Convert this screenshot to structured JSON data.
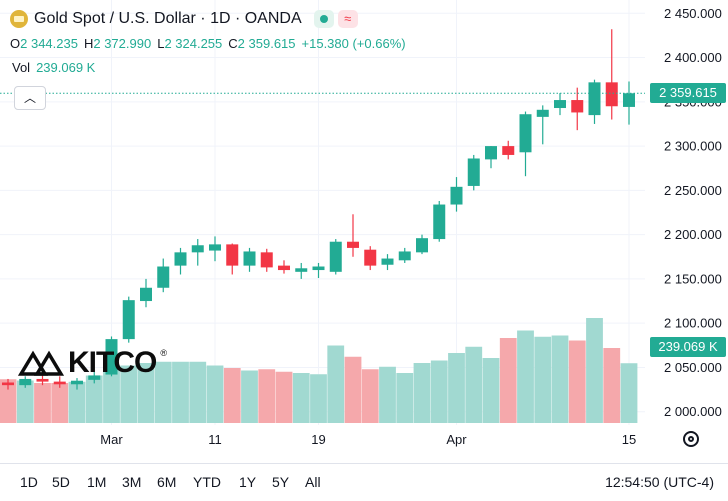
{
  "header": {
    "title": "Gold Spot / U.S. Dollar · 1D · OANDA",
    "ohlc": [
      {
        "k": "O",
        "v": "2 344.235"
      },
      {
        "k": "H",
        "v": "2 372.990"
      },
      {
        "k": "L",
        "v": "2 324.255"
      },
      {
        "k": "C",
        "v": "2 359.615"
      }
    ],
    "change": "+15.380 (+0.66%)",
    "vol_label": "Vol",
    "vol_value": "239.069 K",
    "wave_icon": "≈"
  },
  "logo": {
    "text": "KITCO",
    "mark": "®"
  },
  "price_tags": {
    "price": "2 359.615",
    "volume": "239.069 K"
  },
  "bottom": {
    "ranges": [
      "1D",
      "5D",
      "1M",
      "3M",
      "6M",
      "YTD",
      "1Y",
      "5Y",
      "All"
    ],
    "time": "12:54:50 (UTC-4)"
  },
  "colors": {
    "up": "#22ab94",
    "down": "#f23645",
    "vol_up": "#a1d9d1",
    "vol_down": "#f5a8ab"
  },
  "chart_data": {
    "type": "candlestick",
    "title": "Gold Spot / U.S. Dollar · 1D · OANDA",
    "ylim": [
      1985,
      2465
    ],
    "yticks": [
      2000,
      2050,
      2100,
      2150,
      2200,
      2250,
      2300,
      2350,
      2400,
      2450
    ],
    "ytick_labels": [
      "2 000.000",
      "2 050.000",
      "2 100.000",
      "2 150.000",
      "2 200.000",
      "2 250.000",
      "2 300.000",
      "2 350.000",
      "2 400.000",
      "2 450.000"
    ],
    "xtick_labels": [
      {
        "label": "Mar",
        "index": 6
      },
      {
        "label": "11",
        "index": 12
      },
      {
        "label": "19",
        "index": 18
      },
      {
        "label": "Apr",
        "index": 26
      },
      {
        "label": "15",
        "index": 36
      }
    ],
    "last_price": 2359.615,
    "candles": [
      {
        "o": 2033,
        "h": 2037,
        "l": 2025,
        "c": 2030
      },
      {
        "o": 2030,
        "h": 2040,
        "l": 2027,
        "c": 2037
      },
      {
        "o": 2037,
        "h": 2042,
        "l": 2030,
        "c": 2034
      },
      {
        "o": 2034,
        "h": 2040,
        "l": 2027,
        "c": 2031
      },
      {
        "o": 2031,
        "h": 2038,
        "l": 2025,
        "c": 2035
      },
      {
        "o": 2036,
        "h": 2045,
        "l": 2032,
        "c": 2041
      },
      {
        "o": 2042,
        "h": 2085,
        "l": 2040,
        "c": 2082
      },
      {
        "o": 2082,
        "h": 2130,
        "l": 2078,
        "c": 2126
      },
      {
        "o": 2125,
        "h": 2150,
        "l": 2118,
        "c": 2140
      },
      {
        "o": 2140,
        "h": 2173,
        "l": 2135,
        "c": 2164
      },
      {
        "o": 2165,
        "h": 2185,
        "l": 2155,
        "c": 2180
      },
      {
        "o": 2180,
        "h": 2195,
        "l": 2165,
        "c": 2188
      },
      {
        "o": 2182,
        "h": 2198,
        "l": 2170,
        "c": 2189
      },
      {
        "o": 2189,
        "h": 2190,
        "l": 2155,
        "c": 2165
      },
      {
        "o": 2165,
        "h": 2185,
        "l": 2158,
        "c": 2181
      },
      {
        "o": 2180,
        "h": 2184,
        "l": 2158,
        "c": 2163
      },
      {
        "o": 2165,
        "h": 2171,
        "l": 2156,
        "c": 2160
      },
      {
        "o": 2158,
        "h": 2168,
        "l": 2150,
        "c": 2162
      },
      {
        "o": 2160,
        "h": 2168,
        "l": 2151,
        "c": 2164
      },
      {
        "o": 2158,
        "h": 2195,
        "l": 2155,
        "c": 2192
      },
      {
        "o": 2192,
        "h": 2223,
        "l": 2175,
        "c": 2185
      },
      {
        "o": 2183,
        "h": 2187,
        "l": 2160,
        "c": 2165
      },
      {
        "o": 2166,
        "h": 2178,
        "l": 2160,
        "c": 2173
      },
      {
        "o": 2171,
        "h": 2185,
        "l": 2168,
        "c": 2181
      },
      {
        "o": 2180,
        "h": 2200,
        "l": 2178,
        "c": 2196
      },
      {
        "o": 2195,
        "h": 2238,
        "l": 2192,
        "c": 2234
      },
      {
        "o": 2234,
        "h": 2265,
        "l": 2226,
        "c": 2254
      },
      {
        "o": 2255,
        "h": 2290,
        "l": 2250,
        "c": 2286
      },
      {
        "o": 2285,
        "h": 2300,
        "l": 2275,
        "c": 2300
      },
      {
        "o": 2300,
        "h": 2306,
        "l": 2285,
        "c": 2290
      },
      {
        "o": 2293,
        "h": 2339,
        "l": 2266,
        "c": 2336
      },
      {
        "o": 2333,
        "h": 2346,
        "l": 2302,
        "c": 2341
      },
      {
        "o": 2343,
        "h": 2360,
        "l": 2335,
        "c": 2352
      },
      {
        "o": 2352,
        "h": 2366,
        "l": 2318,
        "c": 2338
      },
      {
        "o": 2335,
        "h": 2375,
        "l": 2325,
        "c": 2372
      },
      {
        "o": 2372,
        "h": 2432,
        "l": 2330,
        "c": 2345
      },
      {
        "o": 2344.235,
        "h": 2372.99,
        "l": 2324.255,
        "c": 2359.615
      }
    ],
    "volume": {
      "unit": "K",
      "values": [
        175,
        170,
        160,
        160,
        165,
        190,
        220,
        230,
        240,
        245,
        245,
        245,
        230,
        220,
        210,
        215,
        205,
        200,
        195,
        310,
        265,
        215,
        225,
        200,
        240,
        250,
        280,
        305,
        260,
        340,
        370,
        345,
        350,
        330,
        420,
        300,
        239.069
      ]
    }
  }
}
